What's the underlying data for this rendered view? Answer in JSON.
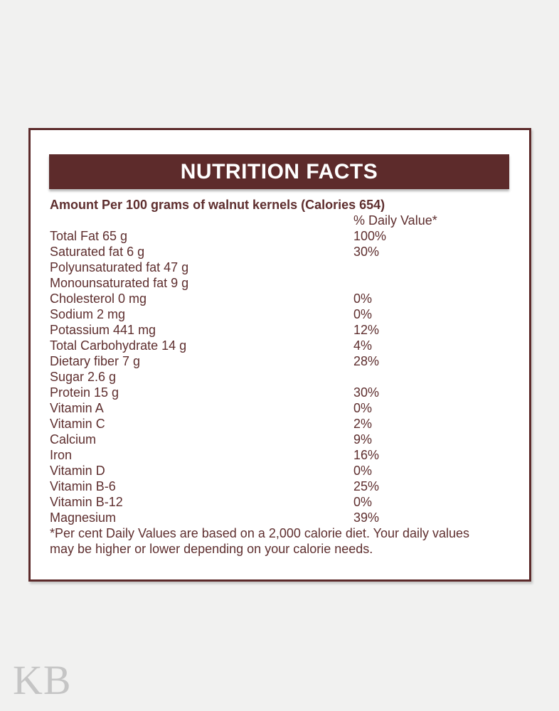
{
  "page": {
    "background_color": "#f1f1f0",
    "accent_color": "#5d2b2b",
    "text_color": "#5e2e2e",
    "watermark_color": "#c5c5c5"
  },
  "watermark": {
    "text": "KB"
  },
  "label": {
    "title": "NUTRITION FACTS",
    "subtitle": "Amount Per 100 grams of walnut kernels (Calories 654)",
    "daily_value_header": "% Daily Value*",
    "rows": [
      {
        "name": "Total Fat 65 g",
        "daily_value": "100%"
      },
      {
        "name": "Saturated fat 6 g",
        "daily_value": "30%"
      },
      {
        "name": "Polyunsaturated fat 47 g",
        "daily_value": ""
      },
      {
        "name": "Monounsaturated fat 9 g",
        "daily_value": ""
      },
      {
        "name": "Cholesterol 0 mg",
        "daily_value": "0%"
      },
      {
        "name": "Sodium 2 mg",
        "daily_value": "0%"
      },
      {
        "name": "Potassium 441 mg",
        "daily_value": "12%"
      },
      {
        "name": "Total Carbohydrate 14 g",
        "daily_value": "4%"
      },
      {
        "name": "Dietary fiber 7 g",
        "daily_value": "28%"
      },
      {
        "name": "Sugar 2.6 g",
        "daily_value": ""
      },
      {
        "name": "Protein 15 g",
        "daily_value": "30%"
      },
      {
        "name": "Vitamin A",
        "daily_value": "0%"
      },
      {
        "name": "Vitamin C",
        "daily_value": "2%"
      },
      {
        "name": "Calcium",
        "daily_value": "9%"
      },
      {
        "name": "Iron",
        "daily_value": "16%"
      },
      {
        "name": "Vitamin D",
        "daily_value": "0%"
      },
      {
        "name": "Vitamin B-6",
        "daily_value": "25%"
      },
      {
        "name": "Vitamin B-12",
        "daily_value": "0%"
      },
      {
        "name": "Magnesium",
        "daily_value": "39%"
      }
    ],
    "footnote_line1": "*Per cent Daily Values are based on a 2,000 calorie diet. Your daily values",
    "footnote_line2": "may be higher or lower depending on your calorie needs."
  }
}
